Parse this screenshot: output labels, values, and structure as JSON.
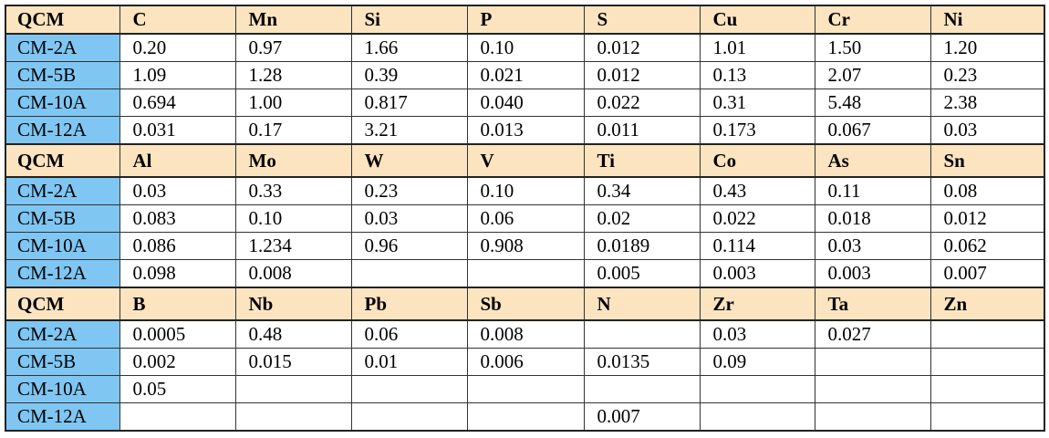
{
  "table": {
    "blocks": [
      {
        "header": [
          "QCM",
          "C",
          "Mn",
          "Si",
          "P",
          "S",
          "Cu",
          "Cr",
          "Ni"
        ],
        "rows": [
          [
            "CM-2A",
            "0.20",
            "0.97",
            "1.66",
            "0.10",
            "0.012",
            "1.01",
            "1.50",
            "1.20"
          ],
          [
            "CM-5B",
            "1.09",
            "1.28",
            "0.39",
            "0.021",
            "0.012",
            "0.13",
            "2.07",
            "0.23"
          ],
          [
            "CM-10A",
            "0.694",
            "1.00",
            "0.817",
            "0.040",
            "0.022",
            "0.31",
            "5.48",
            "2.38"
          ],
          [
            "CM-12A",
            "0.031",
            "0.17",
            "3.21",
            "0.013",
            "0.011",
            "0.173",
            "0.067",
            "0.03"
          ]
        ]
      },
      {
        "header": [
          "QCM",
          "Al",
          "Mo",
          "W",
          "V",
          "Ti",
          "Co",
          "As",
          "Sn"
        ],
        "rows": [
          [
            "CM-2A",
            "0.03",
            "0.33",
            "0.23",
            "0.10",
            "0.34",
            "0.43",
            "0.11",
            "0.08"
          ],
          [
            "CM-5B",
            "0.083",
            "0.10",
            "0.03",
            "0.06",
            "0.02",
            "0.022",
            "0.018",
            "0.012"
          ],
          [
            "CM-10A",
            "0.086",
            "1.234",
            "0.96",
            "0.908",
            "0.0189",
            "0.114",
            "0.03",
            "0.062"
          ],
          [
            "CM-12A",
            "0.098",
            "0.008",
            null,
            null,
            "0.005",
            "0.003",
            "0.003",
            "0.007"
          ]
        ]
      },
      {
        "header": [
          "QCM",
          "B",
          "Nb",
          "Pb",
          "Sb",
          "N",
          "Zr",
          "Ta",
          "Zn"
        ],
        "rows": [
          [
            "CM-2A",
            "0.0005",
            "0.48",
            "0.06",
            "0.008",
            null,
            "0.03",
            "0.027",
            null
          ],
          [
            "CM-5B",
            "0.002",
            "0.015",
            "0.01",
            "0.006",
            "0.0135",
            "0.09",
            null,
            null
          ],
          [
            "CM-10A",
            "0.05",
            null,
            null,
            null,
            null,
            null,
            null,
            null
          ],
          [
            "CM-12A",
            null,
            null,
            null,
            null,
            "0.007",
            null,
            null,
            null
          ]
        ]
      }
    ]
  }
}
